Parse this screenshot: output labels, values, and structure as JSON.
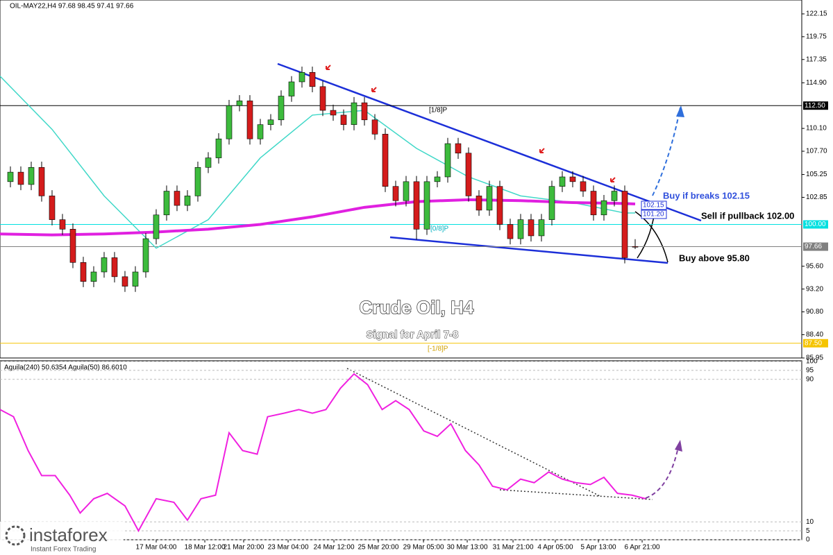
{
  "chart_data": {
    "type": "candlestick",
    "header": "OIL-MAY22,H4  97.68 98.45 97.41 97.66",
    "xlim": [
      -1,
      76
    ],
    "ylim": [
      85.95,
      122.15
    ],
    "yticks": [
      122.15,
      119.75,
      117.35,
      {
        "value": 114.9,
        "label": "114.90"
      },
      {
        "value": 110.1,
        "label": "110.10"
      },
      {
        "value": 107.7,
        "label": "107.70"
      },
      105.25,
      102.85,
      {
        "value": 95.6,
        "label": "95.60"
      },
      {
        "value": 93.2,
        "label": "93.20"
      },
      {
        "value": 90.8,
        "label": "90.80"
      },
      {
        "value": 88.4,
        "label": "88.40"
      },
      85.95
    ],
    "xticks": [
      {
        "value": 14,
        "label": "17 Mar 04:00"
      },
      {
        "value": 18.67,
        "label": "18 Mar 12:00"
      },
      {
        "value": 22.4,
        "label": "21 Mar 20:00"
      },
      {
        "value": 26.67,
        "label": "23 Mar 04:00"
      },
      {
        "value": 31.07,
        "label": "24 Mar 12:00"
      },
      {
        "value": 35.33,
        "label": "25 Mar 20:00"
      },
      {
        "value": 39.67,
        "label": "29 Mar 05:00"
      },
      {
        "value": 43.87,
        "label": "30 Mar 13:00"
      },
      {
        "value": 48.27,
        "label": "31 Mar 21:00"
      },
      {
        "value": 52.33,
        "label": "4 Apr 05:00"
      },
      {
        "value": 56.47,
        "label": "5 Apr 13:00"
      },
      {
        "value": 60.67,
        "label": "6 Apr 21:00"
      }
    ],
    "levels": [
      {
        "value": 112.5,
        "label": "112.50",
        "color": "#000000"
      },
      {
        "value": 100,
        "label": "100.00",
        "color": "#00e0e0"
      },
      {
        "value": 97.66,
        "label": "97.66",
        "color": "#808080"
      },
      {
        "value": 87.5,
        "label": "87.50",
        "color": "#f5c400"
      }
    ],
    "up_color": "#3dbb3d",
    "down_color": "#d41c1c",
    "candles": [
      [
        104.5,
        106.1,
        103.9,
        105.5
      ],
      [
        105.5,
        106.1,
        103.6,
        104.2
      ],
      [
        104.2,
        106.6,
        103.6,
        106.0
      ],
      [
        106.0,
        106.6,
        102.4,
        103.0
      ],
      [
        103.0,
        103.6,
        99.9,
        100.5
      ],
      [
        100.5,
        101.1,
        98.9,
        99.5
      ],
      [
        99.5,
        100.1,
        95.4,
        96.0
      ],
      [
        96.0,
        96.6,
        93.4,
        94.0
      ],
      [
        94.0,
        95.6,
        93.4,
        95.0
      ],
      [
        95.0,
        97.1,
        94.4,
        96.5
      ],
      [
        96.5,
        97.1,
        93.9,
        94.5
      ],
      [
        94.5,
        95.1,
        92.9,
        93.5
      ],
      [
        93.5,
        95.6,
        92.9,
        95.0
      ],
      [
        95.0,
        99.1,
        94.4,
        98.5
      ],
      [
        98.5,
        101.6,
        97.9,
        101.0
      ],
      [
        101.0,
        104.1,
        100.4,
        103.5
      ],
      [
        103.5,
        104.1,
        101.4,
        102.0
      ],
      [
        102.0,
        103.6,
        101.4,
        103.0
      ],
      [
        103.0,
        106.6,
        102.4,
        106.0
      ],
      [
        106.0,
        107.6,
        105.4,
        107.0
      ],
      [
        107.0,
        109.6,
        106.4,
        109.0
      ],
      [
        109.0,
        113.1,
        108.4,
        112.5
      ],
      [
        112.5,
        113.6,
        111.9,
        113.0
      ],
      [
        113.0,
        113.6,
        108.4,
        109.0
      ],
      [
        109.0,
        111.1,
        108.4,
        110.5
      ],
      [
        110.5,
        111.6,
        109.9,
        111.0
      ],
      [
        111.0,
        114.1,
        110.4,
        113.5
      ],
      [
        113.5,
        115.6,
        112.9,
        115.0
      ],
      [
        115.0,
        116.6,
        114.4,
        116.0
      ],
      [
        116.0,
        116.6,
        113.9,
        114.5
      ],
      [
        114.5,
        115.1,
        111.4,
        112.0
      ],
      [
        112.0,
        112.6,
        110.9,
        111.5
      ],
      [
        111.5,
        112.1,
        109.9,
        110.5
      ],
      [
        110.5,
        113.4,
        109.9,
        112.8
      ],
      [
        112.8,
        113.4,
        110.4,
        111.0
      ],
      [
        111.0,
        111.6,
        108.9,
        109.5
      ],
      [
        109.5,
        110.1,
        103.4,
        104.0
      ],
      [
        104.0,
        104.6,
        101.9,
        102.5
      ],
      [
        102.5,
        105.1,
        101.9,
        104.5
      ],
      [
        104.5,
        105.1,
        98.4,
        99.5
      ],
      [
        99.5,
        105.1,
        98.9,
        104.5
      ],
      [
        104.5,
        105.6,
        103.9,
        105.0
      ],
      [
        105.0,
        109.1,
        104.4,
        108.5
      ],
      [
        108.5,
        109.1,
        106.9,
        107.5
      ],
      [
        107.5,
        108.1,
        102.4,
        103.0
      ],
      [
        103.0,
        103.6,
        100.9,
        101.5
      ],
      [
        101.5,
        104.6,
        100.9,
        104.0
      ],
      [
        104.0,
        104.6,
        99.4,
        100.0
      ],
      [
        100.0,
        100.6,
        97.9,
        98.5
      ],
      [
        98.5,
        101.1,
        97.9,
        100.5
      ],
      [
        100.5,
        101.1,
        98.2,
        98.8
      ],
      [
        98.8,
        101.1,
        98.2,
        100.5
      ],
      [
        100.5,
        104.6,
        99.9,
        104.0
      ],
      [
        104.0,
        105.6,
        103.4,
        105.0
      ],
      [
        105.0,
        105.6,
        103.9,
        104.5
      ],
      [
        104.5,
        105.1,
        102.9,
        103.5
      ],
      [
        103.5,
        104.1,
        100.4,
        101.0
      ],
      [
        101.0,
        103.1,
        100.4,
        102.5
      ],
      [
        102.5,
        104.1,
        101.9,
        103.5
      ],
      [
        103.5,
        104.1,
        95.9,
        96.5
      ],
      [
        97.68,
        98.45,
        97.41,
        97.66
      ]
    ],
    "series": [
      {
        "color": "#40d8c8",
        "x": [
          -1,
          4,
          9,
          14,
          19,
          24,
          29,
          34,
          39,
          44,
          49,
          54,
          59,
          60
        ],
        "values": [
          115.6,
          110,
          103,
          97.5,
          100.5,
          107,
          111.5,
          112,
          108,
          105,
          103,
          102.3,
          101.2,
          101.2
        ]
      },
      {
        "color": "#e020e0",
        "x": [
          -1,
          4,
          9,
          14,
          19,
          24,
          29,
          34,
          39,
          44,
          49,
          54,
          59,
          60
        ],
        "values": [
          99.0,
          98.9,
          99.0,
          99.2,
          99.5,
          100.0,
          100.8,
          101.8,
          102.4,
          102.6,
          102.5,
          102.3,
          102.2,
          102.15
        ]
      }
    ],
    "annotations": [
      "[1/8]P",
      "[0/8]P",
      "[-1/8]P",
      "Buy if breaks 102.15",
      "Sell if pullback 102.00",
      "Buy above 95.80",
      "Crude Oil, H4",
      "Signal for April 7-8",
      "102.15",
      "101.20"
    ],
    "oscillator": {
      "header": "Aguila(240) 50.6354  Aguila(50) 86.6010",
      "ylim": [
        0,
        100
      ],
      "yticks": [
        100,
        95,
        90,
        10,
        5,
        0
      ],
      "color": "#f020e0",
      "x": [
        -1,
        0.3,
        1.7,
        3,
        4.3,
        5.7,
        6.7,
        8,
        9.3,
        11,
        12.3,
        14,
        15.7,
        17,
        18.3,
        19.7,
        21,
        22.3,
        23.7,
        24.7,
        26.3,
        27.7,
        29,
        30.3,
        31.7,
        33,
        34.3,
        35.7,
        37,
        38.3,
        39.7,
        41,
        42.3,
        43.7,
        45,
        46.3,
        47.7,
        49,
        50.3,
        51.7,
        53,
        54.3,
        55.7,
        57,
        58.3,
        59.7,
        61
      ],
      "values": [
        73,
        69,
        50,
        36,
        36,
        25,
        15,
        23,
        26,
        19,
        5,
        23,
        21,
        11,
        23,
        25,
        60,
        50,
        48,
        69,
        71,
        73,
        71,
        73,
        85,
        93,
        87,
        73,
        78,
        73,
        61,
        58,
        65,
        50,
        42,
        30,
        28,
        34,
        32,
        38,
        34,
        32,
        31,
        35,
        26,
        25,
        23
      ]
    }
  },
  "branding": {
    "name": "instaforex",
    "tagline": "Instant Forex Trading"
  }
}
